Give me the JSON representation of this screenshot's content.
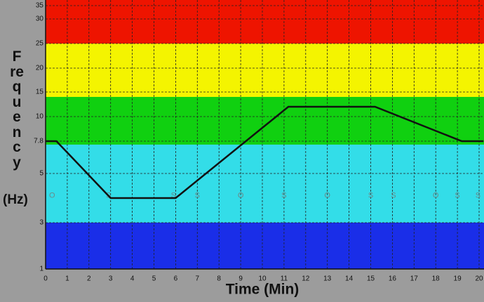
{
  "chart_data": {
    "type": "line",
    "x_label": "Time (Min)",
    "y_label": "Frequency",
    "y_unit": "(Hz)",
    "xlim": [
      0,
      20.2
    ],
    "xticks": [
      0,
      1,
      2,
      3,
      4,
      5,
      6,
      7,
      8,
      9,
      10,
      11,
      12,
      13,
      14,
      15,
      16,
      17,
      18,
      19,
      20
    ],
    "ylim": [
      1,
      36
    ],
    "yticks": [
      1,
      3,
      5,
      7.8,
      10,
      15,
      20,
      25,
      30,
      35
    ],
    "grid": true,
    "bands": [
      {
        "from": 25,
        "to": 36,
        "color": "#ee1400"
      },
      {
        "from": 14,
        "to": 25,
        "color": "#f4f400"
      },
      {
        "from": 7.5,
        "to": 14,
        "color": "#10d010"
      },
      {
        "from": 3,
        "to": 7.5,
        "color": "#33dde8"
      },
      {
        "from": 1,
        "to": 3,
        "color": "#1a2ee8"
      }
    ],
    "series": [
      {
        "name": "Frequency",
        "color": "#111111",
        "x": [
          0,
          0.5,
          3,
          6,
          11.2,
          15.2,
          19.2,
          20.2
        ],
        "values": [
          7.8,
          7.8,
          4,
          4,
          12,
          12,
          7.8,
          7.8
        ]
      }
    ],
    "markers": {
      "y": 4.1,
      "x": [
        0.3,
        2.9,
        5.9,
        7.0,
        9.0,
        11.0,
        13.0,
        15.0,
        16.05,
        18.0,
        19.0,
        19.95
      ],
      "labels": [
        "O",
        "S",
        "S",
        "S",
        "O",
        "S",
        "O",
        "S",
        "S",
        "O",
        "S",
        "S"
      ]
    }
  }
}
